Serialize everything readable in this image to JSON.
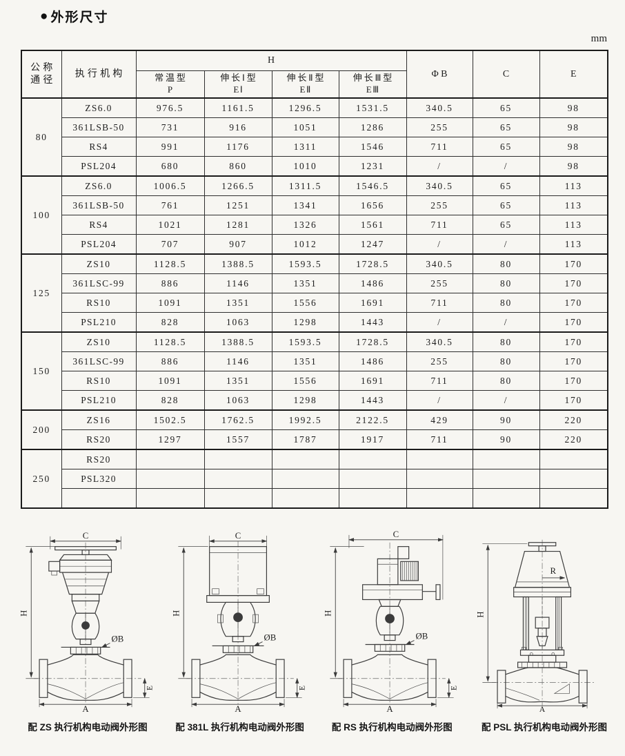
{
  "page": {
    "bullet": "●",
    "title": "外形尺寸",
    "unit": "mm"
  },
  "table": {
    "header": {
      "diameter": {
        "line1": "公称",
        "line2": "通径"
      },
      "actuator": "执行机构",
      "h_group": "H",
      "h_subcols": [
        {
          "line1": "常温型",
          "line2": "P"
        },
        {
          "line1": "伸长Ⅰ型",
          "line2": "EⅠ"
        },
        {
          "line1": "伸长Ⅱ型",
          "line2": "EⅡ"
        },
        {
          "line1": "伸长Ⅲ型",
          "line2": "EⅢ"
        }
      ],
      "phib": "ΦB",
      "c": "C",
      "e": "E"
    },
    "groups": [
      {
        "diameter": "80",
        "rows": [
          {
            "actuator": "ZS6.0",
            "values": [
              "976.5",
              "1161.5",
              "1296.5",
              "1531.5",
              "340.5",
              "65",
              "98"
            ]
          },
          {
            "actuator": "361LSB-50",
            "values": [
              "731",
              "916",
              "1051",
              "1286",
              "255",
              "65",
              "98"
            ]
          },
          {
            "actuator": "RS4",
            "values": [
              "991",
              "1176",
              "1311",
              "1546",
              "711",
              "65",
              "98"
            ]
          },
          {
            "actuator": "PSL204",
            "values": [
              "680",
              "860",
              "1010",
              "1231",
              "/",
              "/",
              "98"
            ]
          }
        ]
      },
      {
        "diameter": "100",
        "rows": [
          {
            "actuator": "ZS6.0",
            "values": [
              "1006.5",
              "1266.5",
              "1311.5",
              "1546.5",
              "340.5",
              "65",
              "113"
            ]
          },
          {
            "actuator": "361LSB-50",
            "values": [
              "761",
              "1251",
              "1341",
              "1656",
              "255",
              "65",
              "113"
            ]
          },
          {
            "actuator": "RS4",
            "values": [
              "1021",
              "1281",
              "1326",
              "1561",
              "711",
              "65",
              "113"
            ]
          },
          {
            "actuator": "PSL204",
            "values": [
              "707",
              "907",
              "1012",
              "1247",
              "/",
              "/",
              "113"
            ]
          }
        ]
      },
      {
        "diameter": "125",
        "rows": [
          {
            "actuator": "ZS10",
            "values": [
              "1128.5",
              "1388.5",
              "1593.5",
              "1728.5",
              "340.5",
              "80",
              "170"
            ]
          },
          {
            "actuator": "361LSC-99",
            "values": [
              "886",
              "1146",
              "1351",
              "1486",
              "255",
              "80",
              "170"
            ]
          },
          {
            "actuator": "RS10",
            "values": [
              "1091",
              "1351",
              "1556",
              "1691",
              "711",
              "80",
              "170"
            ]
          },
          {
            "actuator": "PSL210",
            "values": [
              "828",
              "1063",
              "1298",
              "1443",
              "/",
              "/",
              "170"
            ]
          }
        ]
      },
      {
        "diameter": "150",
        "rows": [
          {
            "actuator": "ZS10",
            "values": [
              "1128.5",
              "1388.5",
              "1593.5",
              "1728.5",
              "340.5",
              "80",
              "170"
            ]
          },
          {
            "actuator": "361LSC-99",
            "values": [
              "886",
              "1146",
              "1351",
              "1486",
              "255",
              "80",
              "170"
            ]
          },
          {
            "actuator": "RS10",
            "values": [
              "1091",
              "1351",
              "1556",
              "1691",
              "711",
              "80",
              "170"
            ]
          },
          {
            "actuator": "PSL210",
            "values": [
              "828",
              "1063",
              "1298",
              "1443",
              "/",
              "/",
              "170"
            ]
          }
        ]
      },
      {
        "diameter": "200",
        "rows": [
          {
            "actuator": "ZS16",
            "values": [
              "1502.5",
              "1762.5",
              "1992.5",
              "2122.5",
              "429",
              "90",
              "220"
            ]
          },
          {
            "actuator": "RS20",
            "values": [
              "1297",
              "1557",
              "1787",
              "1917",
              "711",
              "90",
              "220"
            ]
          }
        ]
      },
      {
        "diameter": "250",
        "rows": [
          {
            "actuator": "RS20",
            "values": [
              "",
              "",
              "",
              "",
              "",
              "",
              ""
            ]
          },
          {
            "actuator": "PSL320",
            "values": [
              "",
              "",
              "",
              "",
              "",
              "",
              ""
            ]
          },
          {
            "actuator": "",
            "values": [
              "",
              "",
              "",
              "",
              "",
              "",
              ""
            ]
          }
        ]
      }
    ]
  },
  "figures": [
    {
      "caption": "配 ZS 执行机构电动阀外形图",
      "dims": {
        "c": "C",
        "h": "H",
        "phib": "ØB",
        "a": "A",
        "e": "E"
      }
    },
    {
      "caption": "配 381L 执行机构电动阀外形图",
      "dims": {
        "c": "C",
        "h": "H",
        "phib": "ØB",
        "a": "A",
        "e": "E"
      }
    },
    {
      "caption": "配 RS 执行机构电动阀外形图",
      "dims": {
        "c": "C",
        "h": "H",
        "phib": "ØB",
        "a": "A",
        "e": "E"
      }
    },
    {
      "caption": "配 PSL 执行机构电动阀外形图",
      "dims": {
        "h": "H",
        "r": "R",
        "a": "A"
      }
    }
  ]
}
